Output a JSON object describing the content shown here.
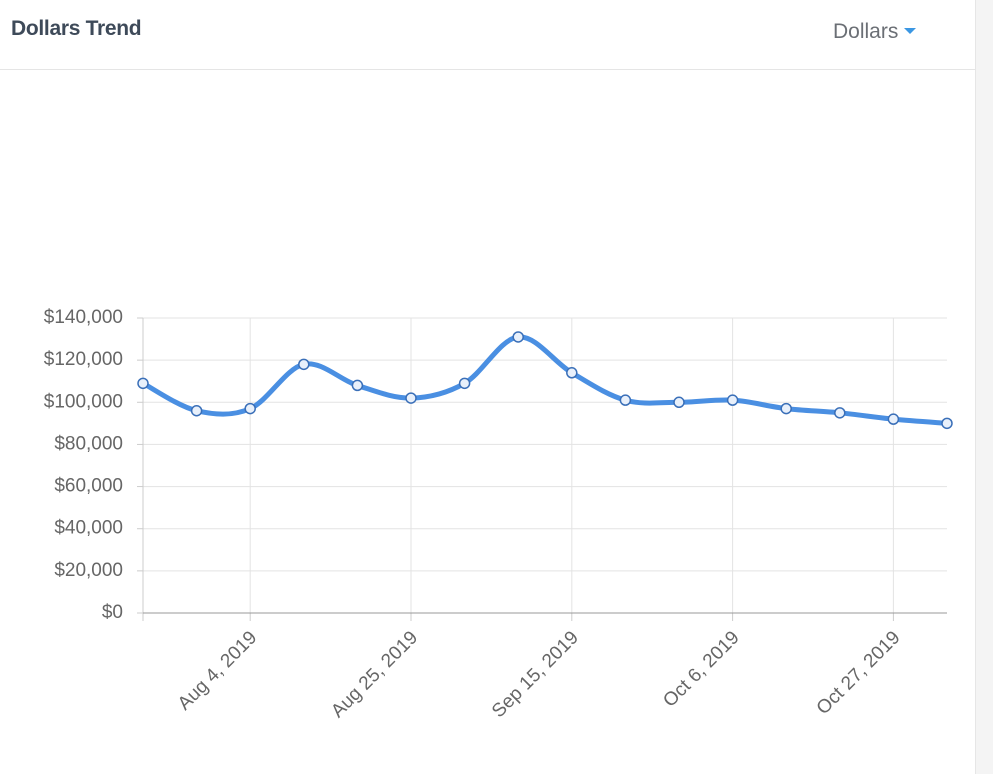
{
  "header": {
    "title": "Dollars Trend",
    "dropdown": "Dollars"
  },
  "chart_data": {
    "type": "line",
    "x": [
      "2019-07-21",
      "2019-07-28",
      "2019-08-04",
      "2019-08-11",
      "2019-08-18",
      "2019-08-25",
      "2019-09-01",
      "2019-09-08",
      "2019-09-15",
      "2019-09-22",
      "2019-09-29",
      "2019-10-06",
      "2019-10-13",
      "2019-10-20",
      "2019-10-27",
      "2019-11-03"
    ],
    "series": [
      {
        "name": "Dollars",
        "color": "#4a8fe2",
        "values": [
          109000,
          96000,
          97000,
          118000,
          108000,
          102000,
          109000,
          131000,
          114000,
          101000,
          100000,
          101000,
          97000,
          95000,
          92000,
          90000
        ]
      }
    ],
    "xlim": [
      "2019-07-21",
      "2019-11-03"
    ],
    "xticks": [
      {
        "value": "2019-08-04",
        "label": "Aug 4, 2019"
      },
      {
        "value": "2019-08-25",
        "label": "Aug 25, 2019"
      },
      {
        "value": "2019-09-15",
        "label": "Sep 15, 2019"
      },
      {
        "value": "2019-10-06",
        "label": "Oct 6, 2019"
      },
      {
        "value": "2019-10-27",
        "label": "Oct 27, 2019"
      }
    ],
    "ylim": [
      0,
      140000
    ],
    "yticks": [
      {
        "value": 0,
        "label": "$0"
      },
      {
        "value": 20000,
        "label": "$20,000"
      },
      {
        "value": 40000,
        "label": "$40,000"
      },
      {
        "value": 60000,
        "label": "$60,000"
      },
      {
        "value": 80000,
        "label": "$80,000"
      },
      {
        "value": 100000,
        "label": "$100,000"
      },
      {
        "value": 120000,
        "label": "$120,000"
      },
      {
        "value": 140000,
        "label": "$140,000"
      }
    ],
    "grid": true
  }
}
